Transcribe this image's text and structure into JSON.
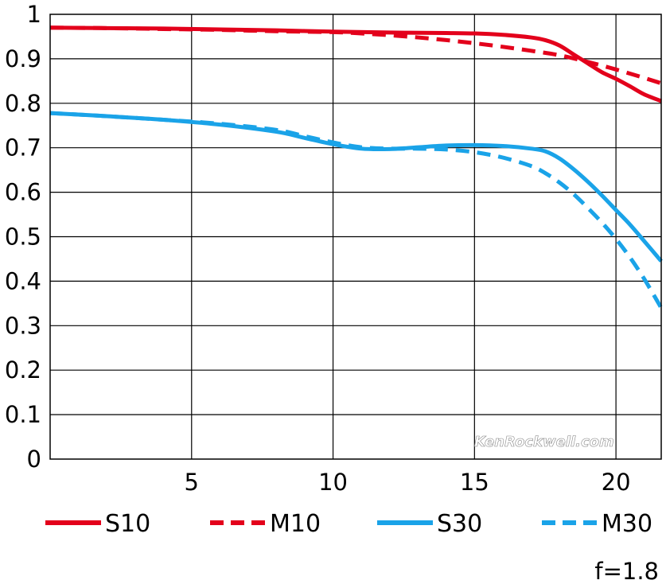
{
  "chart_data": {
    "type": "line",
    "title": "",
    "xlabel": "",
    "ylabel": "",
    "xlim": [
      0,
      21.6
    ],
    "ylim": [
      0,
      1
    ],
    "x_ticks": [
      5,
      10,
      15,
      20
    ],
    "y_ticks": [
      0,
      0.1,
      0.2,
      0.3,
      0.4,
      0.5,
      0.6,
      0.7,
      0.8,
      0.9,
      1
    ],
    "y_tick_labels": [
      "0",
      "0.1",
      "0.2",
      "0.3",
      "0.4",
      "0.5",
      "0.6",
      "0.7",
      "0.8",
      "0.9",
      "1"
    ],
    "x_tick_labels": [
      "5",
      "10",
      "15",
      "20"
    ],
    "grid": true,
    "legend_position": "bottom",
    "series": [
      {
        "name": "S10",
        "color": "#e3001b",
        "dash": "solid",
        "x": [
          0,
          2,
          4,
          6,
          8,
          10,
          12,
          14,
          15,
          16,
          17,
          17.5,
          18,
          18.5,
          19,
          19.5,
          20,
          20.5,
          21,
          21.6
        ],
        "values": [
          0.97,
          0.969,
          0.968,
          0.966,
          0.964,
          0.961,
          0.959,
          0.958,
          0.957,
          0.954,
          0.948,
          0.942,
          0.93,
          0.91,
          0.89,
          0.87,
          0.855,
          0.838,
          0.82,
          0.805
        ]
      },
      {
        "name": "M10",
        "color": "#e3001b",
        "dash": "dashed",
        "x": [
          0,
          2,
          4,
          6,
          8,
          10,
          11,
          12,
          13,
          14,
          15,
          16,
          17,
          18,
          19,
          20,
          21,
          21.6
        ],
        "values": [
          0.97,
          0.969,
          0.967,
          0.965,
          0.962,
          0.96,
          0.957,
          0.953,
          0.948,
          0.942,
          0.935,
          0.927,
          0.918,
          0.908,
          0.893,
          0.876,
          0.857,
          0.845
        ]
      },
      {
        "name": "S30",
        "color": "#1aa3e8",
        "dash": "solid",
        "x": [
          0,
          2,
          4,
          6,
          8,
          9,
          10,
          11,
          12,
          13,
          14,
          15,
          16,
          17,
          17.5,
          18,
          18.5,
          19,
          19.5,
          20,
          20.5,
          21,
          21.6
        ],
        "values": [
          0.778,
          0.771,
          0.763,
          0.752,
          0.736,
          0.722,
          0.708,
          0.698,
          0.697,
          0.701,
          0.705,
          0.706,
          0.704,
          0.698,
          0.692,
          0.676,
          0.652,
          0.624,
          0.593,
          0.56,
          0.527,
          0.49,
          0.445
        ]
      },
      {
        "name": "M30",
        "color": "#1aa3e8",
        "dash": "dashed",
        "x": [
          0,
          2,
          4,
          6,
          8,
          9,
          10,
          11,
          12,
          13,
          14,
          15,
          16,
          17,
          17.5,
          18,
          18.5,
          19,
          19.5,
          20,
          20.5,
          21,
          21.6
        ],
        "values": [
          0.778,
          0.771,
          0.763,
          0.754,
          0.74,
          0.726,
          0.712,
          0.701,
          0.698,
          0.698,
          0.696,
          0.69,
          0.678,
          0.659,
          0.643,
          0.622,
          0.596,
          0.565,
          0.532,
          0.495,
          0.453,
          0.405,
          0.34
        ]
      }
    ]
  },
  "watermark": "KenRockwell.com",
  "aperture_note": "f=1.8"
}
